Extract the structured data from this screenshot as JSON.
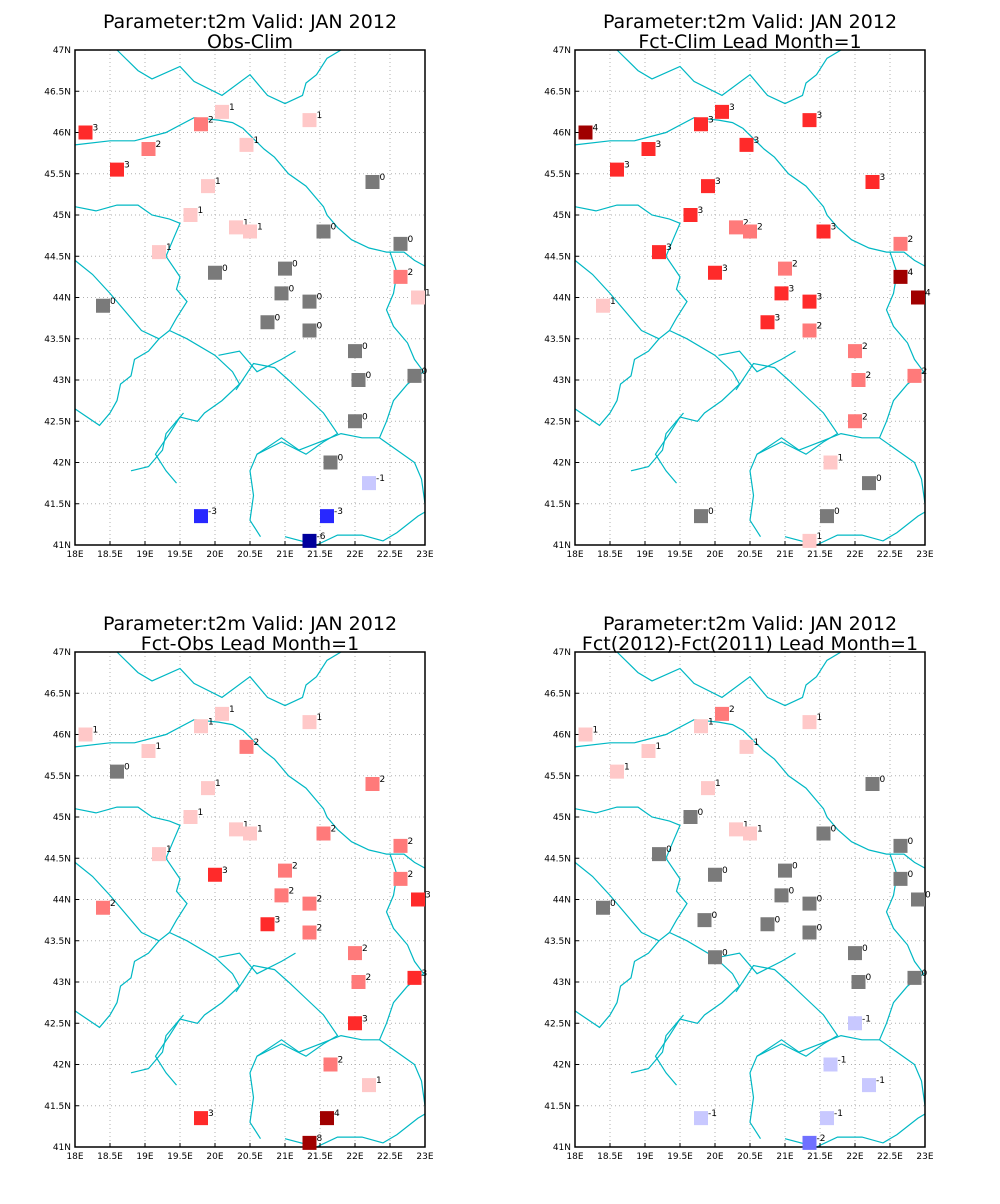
{
  "chart_data": [
    {
      "type": "scatter",
      "title": "Parameter:t2m Valid: JAN 2012",
      "subtitle": "Obs-Clim",
      "xlim": [
        18,
        23
      ],
      "ylim": [
        41,
        47
      ],
      "x_ticks": [
        18,
        18.5,
        19,
        19.5,
        20,
        20.5,
        21,
        21.5,
        22,
        22.5,
        23
      ],
      "x_tick_labels": [
        "18E",
        "18.5E",
        "19E",
        "19.5E",
        "20E",
        "20.5E",
        "21E",
        "21.5E",
        "22E",
        "22.5E",
        "23E"
      ],
      "y_ticks": [
        41,
        41.5,
        42,
        42.5,
        43,
        43.5,
        44,
        44.5,
        45,
        45.5,
        46,
        46.5,
        47
      ],
      "y_tick_labels": [
        "41N",
        "41.5N",
        "42N",
        "42.5N",
        "43N",
        "43.5N",
        "44N",
        "44.5N",
        "45N",
        "45.5N",
        "46N",
        "46.5N",
        "47N"
      ],
      "grid": true,
      "points": [
        {
          "x": 18.15,
          "y": 46.0,
          "v": 3
        },
        {
          "x": 18.6,
          "y": 45.55,
          "v": 3
        },
        {
          "x": 19.05,
          "y": 45.8,
          "v": 2
        },
        {
          "x": 19.8,
          "y": 46.1,
          "v": 2
        },
        {
          "x": 20.1,
          "y": 46.25,
          "v": 1
        },
        {
          "x": 20.45,
          "y": 45.85,
          "v": 1
        },
        {
          "x": 21.35,
          "y": 46.15,
          "v": 1
        },
        {
          "x": 19.9,
          "y": 45.35,
          "v": 1
        },
        {
          "x": 19.65,
          "y": 45.0,
          "v": 1
        },
        {
          "x": 20.3,
          "y": 44.85,
          "v": 1
        },
        {
          "x": 20.5,
          "y": 44.8,
          "v": 1
        },
        {
          "x": 19.2,
          "y": 44.55,
          "v": 1
        },
        {
          "x": 22.25,
          "y": 45.4,
          "v": 0
        },
        {
          "x": 21.55,
          "y": 44.8,
          "v": 0
        },
        {
          "x": 22.65,
          "y": 44.65,
          "v": 0
        },
        {
          "x": 22.65,
          "y": 44.25,
          "v": 2
        },
        {
          "x": 22.9,
          "y": 44.0,
          "v": 1
        },
        {
          "x": 21.0,
          "y": 44.35,
          "v": 0
        },
        {
          "x": 20.0,
          "y": 44.3,
          "v": 0
        },
        {
          "x": 18.4,
          "y": 43.9,
          "v": 0
        },
        {
          "x": 20.95,
          "y": 44.05,
          "v": 0
        },
        {
          "x": 21.35,
          "y": 43.95,
          "v": 0
        },
        {
          "x": 20.75,
          "y": 43.7,
          "v": 0
        },
        {
          "x": 21.35,
          "y": 43.6,
          "v": 0
        },
        {
          "x": 22.0,
          "y": 43.35,
          "v": 0
        },
        {
          "x": 22.05,
          "y": 43.0,
          "v": 0
        },
        {
          "x": 22.85,
          "y": 43.05,
          "v": 0
        },
        {
          "x": 22.0,
          "y": 42.5,
          "v": 0
        },
        {
          "x": 21.65,
          "y": 42.0,
          "v": 0
        },
        {
          "x": 22.2,
          "y": 41.75,
          "v": -1
        },
        {
          "x": 19.8,
          "y": 41.35,
          "v": -3
        },
        {
          "x": 21.6,
          "y": 41.35,
          "v": -3
        },
        {
          "x": 21.35,
          "y": 41.05,
          "v": -6
        }
      ]
    },
    {
      "type": "scatter",
      "title": "Parameter:t2m Valid: JAN 2012",
      "subtitle": "Fct-Clim Lead Month=1",
      "xlim": [
        18,
        23
      ],
      "ylim": [
        41,
        47
      ],
      "x_ticks": [
        18,
        18.5,
        19,
        19.5,
        20,
        20.5,
        21,
        21.5,
        22,
        22.5,
        23
      ],
      "x_tick_labels": [
        "18E",
        "18.5E",
        "19E",
        "19.5E",
        "20E",
        "20.5E",
        "21E",
        "21.5E",
        "22E",
        "22.5E",
        "23E"
      ],
      "y_ticks": [
        41,
        41.5,
        42,
        42.5,
        43,
        43.5,
        44,
        44.5,
        45,
        45.5,
        46,
        46.5,
        47
      ],
      "y_tick_labels": [
        "41N",
        "41.5N",
        "42N",
        "42.5N",
        "43N",
        "43.5N",
        "44N",
        "44.5N",
        "45N",
        "45.5N",
        "46N",
        "46.5N",
        "47N"
      ],
      "grid": true,
      "points": [
        {
          "x": 18.15,
          "y": 46.0,
          "v": 4
        },
        {
          "x": 18.6,
          "y": 45.55,
          "v": 3
        },
        {
          "x": 19.05,
          "y": 45.8,
          "v": 3
        },
        {
          "x": 19.8,
          "y": 46.1,
          "v": 3
        },
        {
          "x": 20.1,
          "y": 46.25,
          "v": 3
        },
        {
          "x": 20.45,
          "y": 45.85,
          "v": 3
        },
        {
          "x": 21.35,
          "y": 46.15,
          "v": 3
        },
        {
          "x": 19.9,
          "y": 45.35,
          "v": 3
        },
        {
          "x": 19.65,
          "y": 45.0,
          "v": 3
        },
        {
          "x": 20.3,
          "y": 44.85,
          "v": 2
        },
        {
          "x": 20.5,
          "y": 44.8,
          "v": 2
        },
        {
          "x": 19.2,
          "y": 44.55,
          "v": 3
        },
        {
          "x": 22.25,
          "y": 45.4,
          "v": 3
        },
        {
          "x": 21.55,
          "y": 44.8,
          "v": 3
        },
        {
          "x": 22.65,
          "y": 44.65,
          "v": 2
        },
        {
          "x": 22.65,
          "y": 44.25,
          "v": 4
        },
        {
          "x": 22.9,
          "y": 44.0,
          "v": 4
        },
        {
          "x": 21.0,
          "y": 44.35,
          "v": 2
        },
        {
          "x": 20.0,
          "y": 44.3,
          "v": 3
        },
        {
          "x": 18.4,
          "y": 43.9,
          "v": 1
        },
        {
          "x": 20.95,
          "y": 44.05,
          "v": 3
        },
        {
          "x": 21.35,
          "y": 43.95,
          "v": 3
        },
        {
          "x": 20.75,
          "y": 43.7,
          "v": 3
        },
        {
          "x": 21.35,
          "y": 43.6,
          "v": 2
        },
        {
          "x": 22.0,
          "y": 43.35,
          "v": 2
        },
        {
          "x": 22.05,
          "y": 43.0,
          "v": 2
        },
        {
          "x": 22.85,
          "y": 43.05,
          "v": 2
        },
        {
          "x": 22.0,
          "y": 42.5,
          "v": 2
        },
        {
          "x": 21.65,
          "y": 42.0,
          "v": 1
        },
        {
          "x": 22.2,
          "y": 41.75,
          "v": 0
        },
        {
          "x": 19.8,
          "y": 41.35,
          "v": 0
        },
        {
          "x": 21.6,
          "y": 41.35,
          "v": 0
        },
        {
          "x": 21.35,
          "y": 41.05,
          "v": 1
        }
      ]
    },
    {
      "type": "scatter",
      "title": "Parameter:t2m Valid: JAN 2012",
      "subtitle": "Fct-Obs Lead Month=1",
      "xlim": [
        18,
        23
      ],
      "ylim": [
        41,
        47
      ],
      "x_ticks": [
        18,
        18.5,
        19,
        19.5,
        20,
        20.5,
        21,
        21.5,
        22,
        22.5,
        23
      ],
      "x_tick_labels": [
        "18E",
        "18.5E",
        "19E",
        "19.5E",
        "20E",
        "20.5E",
        "21E",
        "21.5E",
        "22E",
        "22.5E",
        "23E"
      ],
      "y_ticks": [
        41,
        41.5,
        42,
        42.5,
        43,
        43.5,
        44,
        44.5,
        45,
        45.5,
        46,
        46.5,
        47
      ],
      "y_tick_labels": [
        "41N",
        "41.5N",
        "42N",
        "42.5N",
        "43N",
        "43.5N",
        "44N",
        "44.5N",
        "45N",
        "45.5N",
        "46N",
        "46.5N",
        "47N"
      ],
      "grid": true,
      "points": [
        {
          "x": 18.15,
          "y": 46.0,
          "v": 1
        },
        {
          "x": 18.6,
          "y": 45.55,
          "v": 0
        },
        {
          "x": 19.05,
          "y": 45.8,
          "v": 1
        },
        {
          "x": 19.8,
          "y": 46.1,
          "v": 1
        },
        {
          "x": 20.1,
          "y": 46.25,
          "v": 1
        },
        {
          "x": 20.45,
          "y": 45.85,
          "v": 2
        },
        {
          "x": 21.35,
          "y": 46.15,
          "v": 1
        },
        {
          "x": 19.9,
          "y": 45.35,
          "v": 1
        },
        {
          "x": 19.65,
          "y": 45.0,
          "v": 1
        },
        {
          "x": 20.3,
          "y": 44.85,
          "v": 1
        },
        {
          "x": 20.5,
          "y": 44.8,
          "v": 1
        },
        {
          "x": 19.2,
          "y": 44.55,
          "v": 1
        },
        {
          "x": 22.25,
          "y": 45.4,
          "v": 2
        },
        {
          "x": 21.55,
          "y": 44.8,
          "v": 2
        },
        {
          "x": 22.65,
          "y": 44.65,
          "v": 2
        },
        {
          "x": 22.65,
          "y": 44.25,
          "v": 2
        },
        {
          "x": 22.9,
          "y": 44.0,
          "v": 3
        },
        {
          "x": 21.0,
          "y": 44.35,
          "v": 2
        },
        {
          "x": 20.0,
          "y": 44.3,
          "v": 3
        },
        {
          "x": 18.4,
          "y": 43.9,
          "v": 2
        },
        {
          "x": 20.95,
          "y": 44.05,
          "v": 2
        },
        {
          "x": 21.35,
          "y": 43.95,
          "v": 2
        },
        {
          "x": 20.75,
          "y": 43.7,
          "v": 3
        },
        {
          "x": 21.35,
          "y": 43.6,
          "v": 2
        },
        {
          "x": 22.0,
          "y": 43.35,
          "v": 2
        },
        {
          "x": 22.05,
          "y": 43.0,
          "v": 2
        },
        {
          "x": 22.85,
          "y": 43.05,
          "v": 3
        },
        {
          "x": 22.0,
          "y": 42.5,
          "v": 3
        },
        {
          "x": 21.65,
          "y": 42.0,
          "v": 2
        },
        {
          "x": 22.2,
          "y": 41.75,
          "v": 1
        },
        {
          "x": 19.8,
          "y": 41.35,
          "v": 3
        },
        {
          "x": 21.6,
          "y": 41.35,
          "v": 4
        },
        {
          "x": 21.35,
          "y": 41.05,
          "v": 8
        }
      ]
    },
    {
      "type": "scatter",
      "title": "Parameter:t2m Valid: JAN 2012",
      "subtitle": "Fct(2012)-Fct(2011) Lead Month=1",
      "xlim": [
        18,
        23
      ],
      "ylim": [
        41,
        47
      ],
      "x_ticks": [
        18,
        18.5,
        19,
        19.5,
        20,
        20.5,
        21,
        21.5,
        22,
        22.5,
        23
      ],
      "x_tick_labels": [
        "18E",
        "18.5E",
        "19E",
        "19.5E",
        "20E",
        "20.5E",
        "21E",
        "21.5E",
        "22E",
        "22.5E",
        "23E"
      ],
      "y_ticks": [
        41,
        41.5,
        42,
        42.5,
        43,
        43.5,
        44,
        44.5,
        45,
        45.5,
        46,
        46.5,
        47
      ],
      "y_tick_labels": [
        "41N",
        "41.5N",
        "42N",
        "42.5N",
        "43N",
        "43.5N",
        "44N",
        "44.5N",
        "45N",
        "45.5N",
        "46N",
        "46.5N",
        "47N"
      ],
      "grid": true,
      "points": [
        {
          "x": 18.15,
          "y": 46.0,
          "v": 1
        },
        {
          "x": 18.6,
          "y": 45.55,
          "v": 1
        },
        {
          "x": 19.05,
          "y": 45.8,
          "v": 1
        },
        {
          "x": 19.8,
          "y": 46.1,
          "v": 1
        },
        {
          "x": 20.1,
          "y": 46.25,
          "v": 2
        },
        {
          "x": 20.45,
          "y": 45.85,
          "v": 1
        },
        {
          "x": 21.35,
          "y": 46.15,
          "v": 1
        },
        {
          "x": 19.9,
          "y": 45.35,
          "v": 1
        },
        {
          "x": 19.65,
          "y": 45.0,
          "v": 0
        },
        {
          "x": 20.3,
          "y": 44.85,
          "v": 1
        },
        {
          "x": 20.5,
          "y": 44.8,
          "v": 1
        },
        {
          "x": 19.2,
          "y": 44.55,
          "v": 0
        },
        {
          "x": 22.25,
          "y": 45.4,
          "v": 0
        },
        {
          "x": 21.55,
          "y": 44.8,
          "v": 0
        },
        {
          "x": 22.65,
          "y": 44.65,
          "v": 0
        },
        {
          "x": 22.65,
          "y": 44.25,
          "v": 0
        },
        {
          "x": 22.9,
          "y": 44.0,
          "v": 0
        },
        {
          "x": 21.0,
          "y": 44.35,
          "v": 0
        },
        {
          "x": 20.0,
          "y": 44.3,
          "v": 0
        },
        {
          "x": 18.4,
          "y": 43.9,
          "v": 0
        },
        {
          "x": 20.95,
          "y": 44.05,
          "v": 0
        },
        {
          "x": 21.35,
          "y": 43.95,
          "v": 0
        },
        {
          "x": 20.75,
          "y": 43.7,
          "v": 0
        },
        {
          "x": 21.35,
          "y": 43.6,
          "v": 0
        },
        {
          "x": 19.85,
          "y": 43.75,
          "v": 0
        },
        {
          "x": 20.0,
          "y": 43.3,
          "v": 0
        },
        {
          "x": 22.0,
          "y": 43.35,
          "v": 0
        },
        {
          "x": 22.05,
          "y": 43.0,
          "v": 0
        },
        {
          "x": 22.85,
          "y": 43.05,
          "v": 0
        },
        {
          "x": 22.0,
          "y": 42.5,
          "v": -1
        },
        {
          "x": 21.65,
          "y": 42.0,
          "v": -1
        },
        {
          "x": 22.2,
          "y": 41.75,
          "v": -1
        },
        {
          "x": 19.8,
          "y": 41.35,
          "v": -1
        },
        {
          "x": 21.6,
          "y": 41.35,
          "v": -1
        },
        {
          "x": 21.35,
          "y": 41.05,
          "v": -2
        }
      ]
    }
  ],
  "colors": {
    "coast": "#00b8c4",
    "frame": "#000000",
    "grid": "#b0b0b0",
    "zero": "#7a7a7a",
    "pos1": "#ffc8c8",
    "pos2": "#ff7a7a",
    "pos3": "#ff2a2a",
    "pos4": "#a00000",
    "neg1": "#c8c8ff",
    "neg2": "#7070ff",
    "neg3": "#2828ff",
    "neg6": "#00009c"
  }
}
